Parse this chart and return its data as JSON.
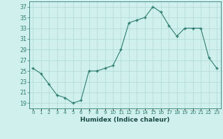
{
  "x": [
    0,
    1,
    2,
    3,
    4,
    5,
    6,
    7,
    8,
    9,
    10,
    11,
    12,
    13,
    14,
    15,
    16,
    17,
    18,
    19,
    20,
    21,
    22,
    23
  ],
  "y": [
    25.5,
    24.5,
    22.5,
    20.5,
    20.0,
    19.0,
    19.5,
    25.0,
    25.0,
    25.5,
    26.0,
    29.0,
    34.0,
    34.5,
    35.0,
    37.0,
    36.0,
    33.5,
    31.5,
    33.0,
    33.0,
    33.0,
    27.5,
    25.5
  ],
  "xlabel": "Humidex (Indice chaleur)",
  "ylim": [
    18,
    38
  ],
  "xlim": [
    -0.5,
    23.5
  ],
  "yticks": [
    19,
    21,
    23,
    25,
    27,
    29,
    31,
    33,
    35,
    37
  ],
  "xtick_labels": [
    "0",
    "1",
    "2",
    "3",
    "4",
    "5",
    "6",
    "7",
    "8",
    "9",
    "10",
    "11",
    "12",
    "13",
    "14",
    "15",
    "16",
    "17",
    "18",
    "19",
    "20",
    "21",
    "22",
    "23"
  ],
  "line_color": "#2e7d6e",
  "marker_color": "#2e7d6e",
  "bg_color": "#cff0ec",
  "grid_color": "#b0d8d4",
  "tick_color": "#2e7d6e",
  "label_color": "#1a4a44",
  "xlabel_fontsize": 6.5,
  "ytick_fontsize": 5.8,
  "xtick_fontsize": 5.2
}
